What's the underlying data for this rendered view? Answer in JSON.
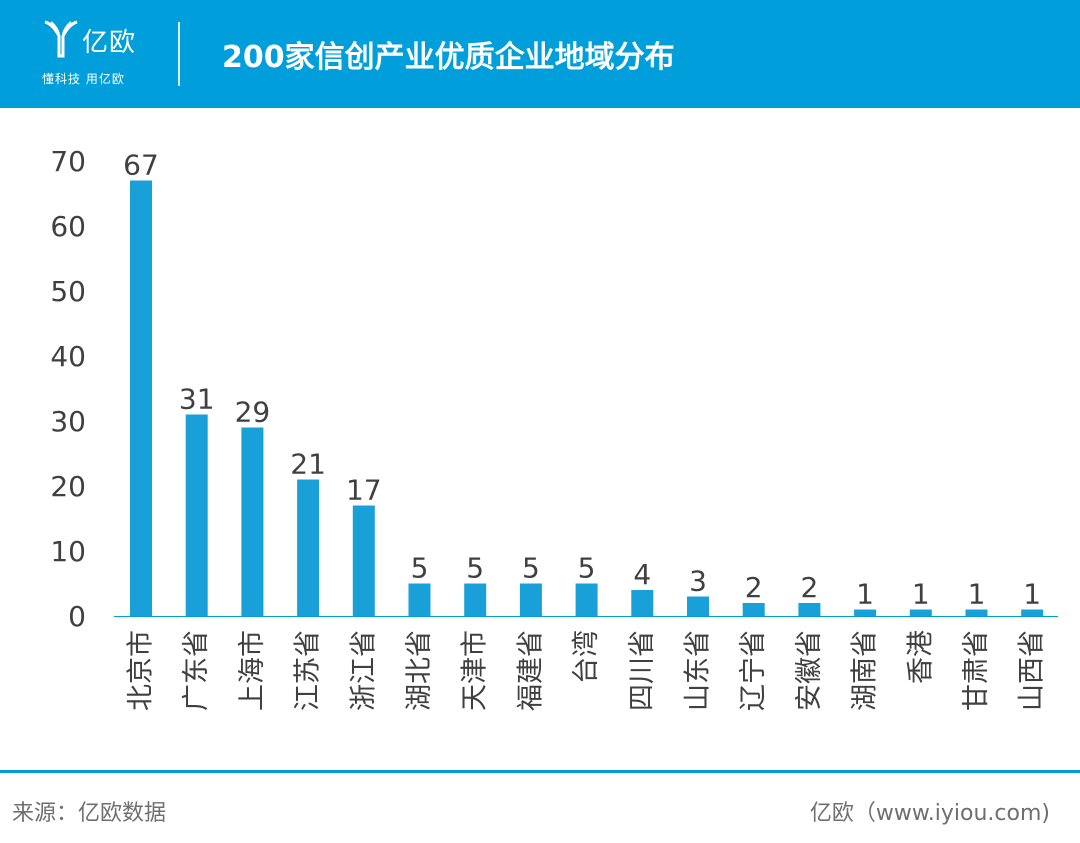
{
  "header": {
    "logo_name": "亿欧",
    "logo_slogan": "懂科技 用亿欧",
    "title": "200家信创产业优质企业地域分布"
  },
  "footer": {
    "source": "来源：亿欧数据",
    "site": "亿欧（www.iyiou.com)"
  },
  "colors": {
    "accent": "#009fdc",
    "bar": "#1aa0d8",
    "text": "#404040"
  },
  "chart_data": {
    "type": "bar",
    "title": "200家信创产业优质企业地域分布",
    "xlabel": "",
    "ylabel": "",
    "ylim": [
      0,
      70
    ],
    "yticks": [
      0,
      10,
      20,
      30,
      40,
      50,
      60,
      70
    ],
    "grid": false,
    "categories": [
      "北京市",
      "广东省",
      "上海市",
      "江苏省",
      "浙江省",
      "湖北省",
      "天津市",
      "福建省",
      "台湾",
      "四川省",
      "山东省",
      "辽宁省",
      "安徽省",
      "湖南省",
      "香港",
      "甘肃省",
      "山西省"
    ],
    "values": [
      67,
      31,
      29,
      21,
      17,
      5,
      5,
      5,
      5,
      4,
      3,
      2,
      2,
      1,
      1,
      1,
      1
    ]
  }
}
